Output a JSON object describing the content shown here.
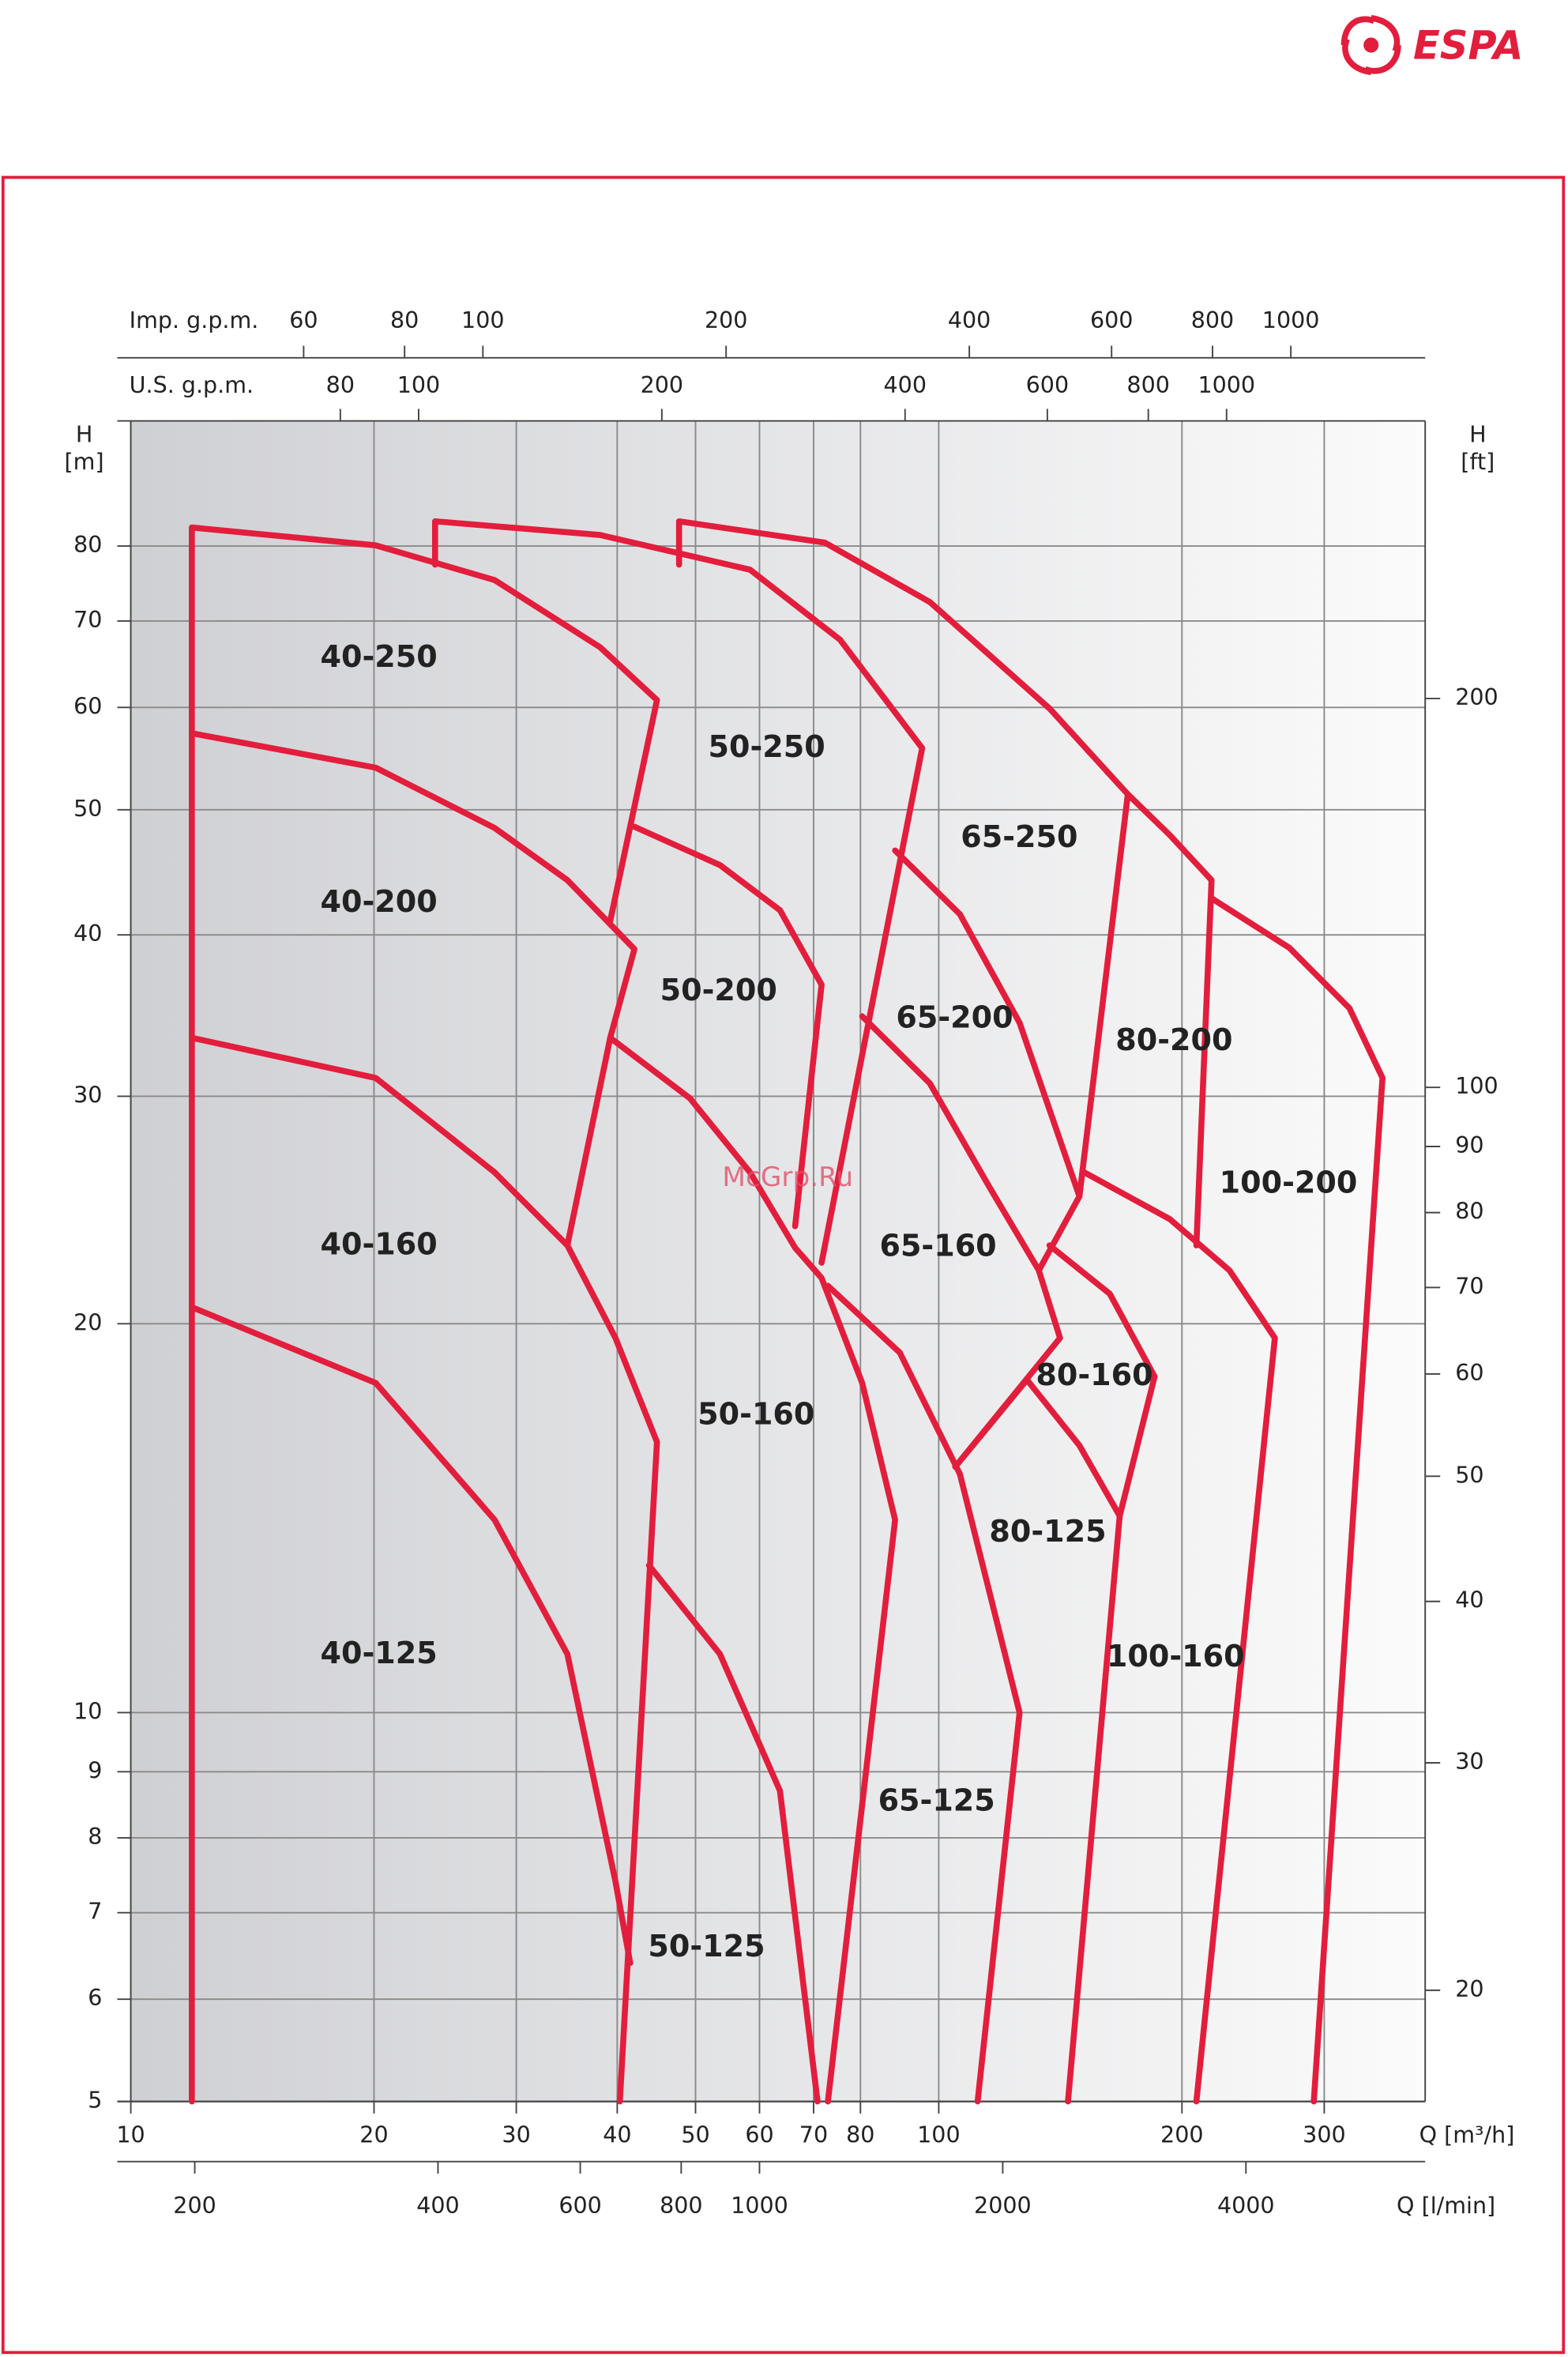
{
  "chart_data": {
    "type": "line",
    "logo": "ESPA",
    "watermark": "McGrp.Ru",
    "xscale": "log",
    "yscale": "log",
    "grid": true,
    "x_label": "Q [m³/h]",
    "xlim": [
      10,
      400
    ],
    "xticks": [
      10,
      20,
      30,
      40,
      50,
      60,
      70,
      80,
      100,
      200,
      300
    ],
    "x2_label": "Q [l/min]",
    "x2lim": [
      166.667,
      6666.667
    ],
    "x2ticks": [
      200,
      400,
      600,
      800,
      1000,
      2000,
      4000
    ],
    "top_axes": [
      {
        "label": "Imp. g.p.m.",
        "lim": [
          36.662,
          1466.5
        ],
        "ticks": [
          60,
          80,
          100,
          200,
          400,
          600,
          800,
          1000
        ]
      },
      {
        "label": "U.S. g.p.m.",
        "lim": [
          44.029,
          1761.2
        ],
        "ticks": [
          80,
          100,
          200,
          400,
          600,
          800,
          1000
        ]
      }
    ],
    "y_label": "H",
    "y_unit": "[m]",
    "ylim": [
      5,
      100
    ],
    "yticks": [
      5,
      6,
      7,
      8,
      9,
      10,
      20,
      30,
      40,
      50,
      60,
      70,
      80
    ],
    "y2_label": "H",
    "y2_unit": "[ft]",
    "y2lim": [
      16.404,
      328.084
    ],
    "y2ticks": [
      20,
      30,
      40,
      50,
      60,
      70,
      80,
      90,
      100,
      200
    ],
    "series": [
      {
        "name": "40-250",
        "color": "#e31d3c",
        "x": [
          11.9,
          11.9,
          20.1,
          28.2,
          38.1,
          44.8,
          39.2
        ],
        "values": [
          5.0,
          82.7,
          80.1,
          75.3,
          66.8,
          60.8,
          41.0
        ]
      },
      {
        "name": "40-200",
        "color": "#e31d3c",
        "x": [
          11.9,
          20.1,
          28.2,
          34.7,
          42.0,
          39.2,
          34.7
        ],
        "values": [
          57.3,
          53.9,
          48.4,
          44.1,
          39.0,
          33.3,
          23.0
        ]
      },
      {
        "name": "40-160",
        "color": "#e31d3c",
        "x": [
          11.9,
          20.1,
          28.2,
          34.7,
          39.8,
          44.8,
          40.3
        ],
        "values": [
          33.3,
          31.0,
          26.2,
          23.0,
          19.5,
          16.2,
          5.0
        ]
      },
      {
        "name": "40-125",
        "color": "#e31d3c",
        "x": [
          11.9,
          20.1,
          28.2,
          34.7,
          39.8,
          41.5
        ],
        "values": [
          20.6,
          18.0,
          14.1,
          11.1,
          7.4,
          6.4
        ]
      },
      {
        "name": "50-250",
        "color": "#e31d3c",
        "x": [
          23.8,
          23.8,
          38.1,
          58.4,
          75.5,
          95.4,
          71.6
        ],
        "values": [
          77.4,
          83.6,
          81.6,
          76.7,
          67.7,
          55.8,
          22.3
        ]
      },
      {
        "name": "50-200",
        "color": "#e31d3c",
        "x": [
          42.0,
          53.6,
          63.6,
          71.6,
          66.4
        ],
        "values": [
          48.5,
          45.3,
          41.8,
          36.6,
          23.8
        ]
      },
      {
        "name": "50-160",
        "color": "#e31d3c",
        "x": [
          39.2,
          49.2,
          58.4,
          66.4,
          71.6,
          80.4,
          88.3,
          72.9
        ],
        "values": [
          33.3,
          29.9,
          26.2,
          22.9,
          21.7,
          18.0,
          14.1,
          5.0
        ]
      },
      {
        "name": "50-125",
        "color": "#e31d3c",
        "x": [
          43.8,
          53.6,
          63.6,
          70.8
        ],
        "values": [
          13.0,
          11.1,
          8.7,
          5.0
        ]
      },
      {
        "name": "65-250",
        "color": "#e31d3c",
        "x": [
          47.7,
          47.7,
          72.3,
          97.5,
          137.1,
          171.4,
          149.3
        ],
        "values": [
          77.4,
          83.6,
          80.5,
          72.4,
          59.9,
          51.4,
          25.1
        ]
      },
      {
        "name": "65-200",
        "color": "#e31d3c",
        "x": [
          88.3,
          106.2,
          125.9,
          149.3,
          133.0
        ],
        "values": [
          46.5,
          41.5,
          34.2,
          25.1,
          22.0
        ]
      },
      {
        "name": "65-160",
        "color": "#e31d3c",
        "x": [
          80.4,
          97.5,
          115.6,
          133.0,
          141.3,
          104.8,
          128.6
        ],
        "values": [
          34.6,
          30.7,
          25.5,
          22.0,
          19.5,
          15.5,
          18.1
        ]
      },
      {
        "name": "65-125",
        "color": "#e31d3c",
        "x": [
          72.9,
          89.5,
          106.2,
          125.9,
          111.7
        ],
        "values": [
          21.4,
          19.0,
          15.3,
          10.0,
          5.0
        ]
      },
      {
        "name": "80-200",
        "color": "#e31d3c",
        "x": [
          171.4,
          193.2,
          217.6,
          208.4
        ],
        "values": [
          51.4,
          47.8,
          44.1,
          23.0
        ]
      },
      {
        "name": "100-200",
        "color": "#e31d3c",
        "x": [
          217.6,
          271.6,
          322.3,
          354.2,
          291.2
        ],
        "values": [
          42.7,
          39.1,
          35.1,
          31.0,
          5.0
        ]
      },
      {
        "name": "80-160",
        "color": "#e31d3c",
        "x": [
          137.1,
          162.8,
          185.0,
          167.5
        ],
        "values": [
          23.0,
          21.1,
          18.2,
          14.2
        ]
      },
      {
        "name": "80-125",
        "color": "#e31d3c",
        "x": [
          128.6,
          149.3,
          167.5,
          144.5
        ],
        "values": [
          18.1,
          16.1,
          14.2,
          5.0
        ]
      },
      {
        "name": "100-160",
        "color": "#e31d3c",
        "x": [
          151.4,
          193.2,
          229.0,
          260.6,
          208.4
        ],
        "values": [
          26.2,
          24.1,
          22.0,
          19.5,
          5.0
        ]
      }
    ]
  }
}
